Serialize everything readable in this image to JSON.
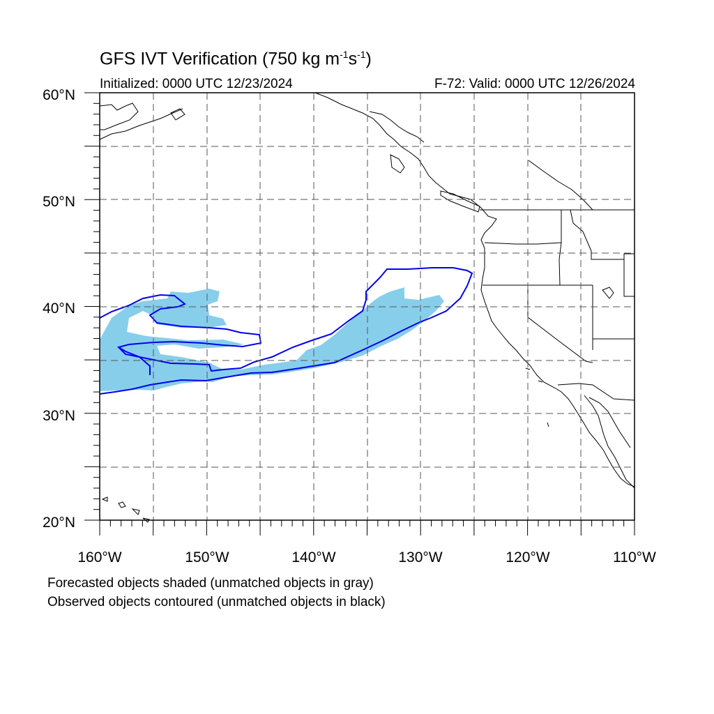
{
  "title": {
    "main": "GFS IVT Verification (750 kg m",
    "exp1": "-1",
    "mid": "s",
    "exp2": "-1",
    "end": ")"
  },
  "subtitle": {
    "left": "Initialized: 0000 UTC 12/23/2024",
    "right": "F-72: Valid: 0000 UTC 12/26/2024"
  },
  "map": {
    "lon_range": [
      -160,
      -110
    ],
    "lat_range": [
      20,
      60
    ],
    "lat_tick_labels": [
      "60°N",
      "50°N",
      "40°N",
      "30°N",
      "20°N"
    ],
    "lon_tick_labels": [
      "160°W",
      "150°W",
      "140°W",
      "130°W",
      "120°W",
      "110°W"
    ],
    "gridlines": "dashed every 5°",
    "colors": {
      "forecast_shade": "#87ceeb",
      "observed_contour": "#0000ee",
      "coast": "#000000",
      "grid": "#555555"
    }
  },
  "legend": {
    "line1": "Forecasted objects shaded (unmatched objects in gray)",
    "line2": "Observed objects contoured (unmatched objects in black)"
  }
}
